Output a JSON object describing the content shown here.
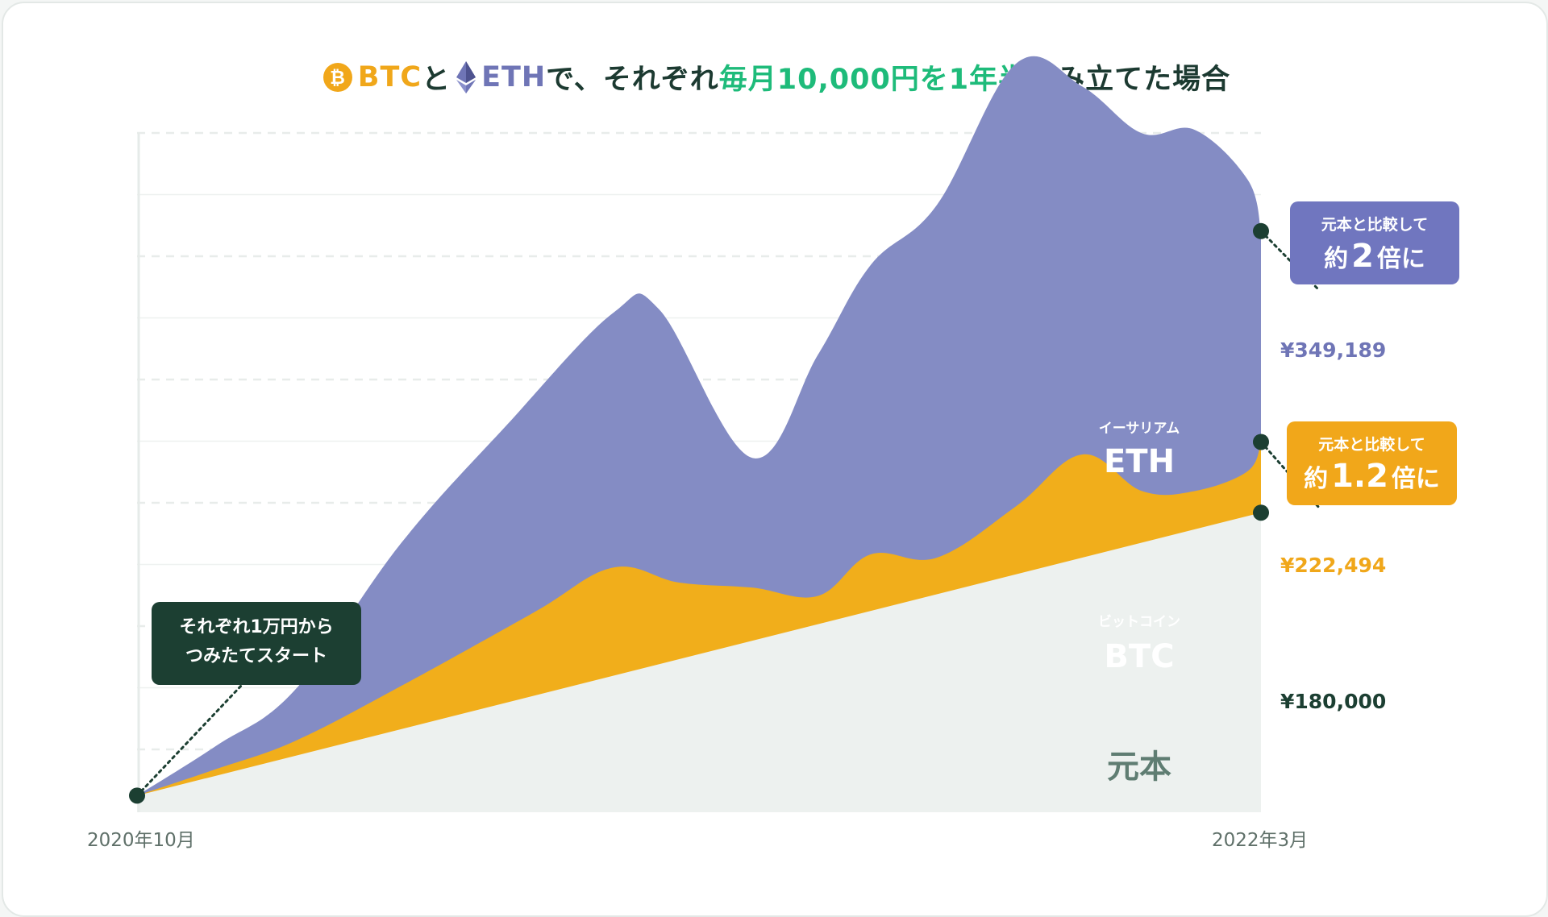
{
  "title": {
    "btc_icon_symbol": "₿",
    "part_btc": "BTC",
    "part_and": "と",
    "part_eth": "ETH",
    "part_de": "で、それぞれ",
    "part_highlight": "毎月10,000円を1年半",
    "part_end": "積み立てた場合"
  },
  "colors": {
    "btc": "#f1ae1b",
    "eth": "#848cc4",
    "principal": "#edf1ef",
    "highlight": "#1ebb7a",
    "dark": "#1c3f32"
  },
  "callouts": {
    "eth": {
      "line1": "元本と比較して",
      "prefix": "約",
      "number": "2",
      "suffix": "倍に"
    },
    "btc": {
      "line1": "元本と比較して",
      "prefix": "約",
      "number": "1.2",
      "suffix": "倍に"
    },
    "start": {
      "line1": "それぞれ1万円から",
      "line2": "つみたてスタート"
    }
  },
  "chart_data": {
    "type": "area",
    "title": "BTCとETHで、それぞれ毎月10,000円を1年半積み立てた場合",
    "x_start_label": "2020年10月",
    "x_end_label": "2022年3月",
    "ylim": [
      0,
      400000
    ],
    "x_domain": [
      0,
      17
    ],
    "series": [
      {
        "name": "元本",
        "key": "principal",
        "points": [
          [
            0,
            10000
          ],
          [
            17,
            180000
          ]
        ],
        "final_label": "¥180,000"
      },
      {
        "name": "BTC",
        "key": "btc",
        "kana": "ビットコイン",
        "points": [
          [
            0,
            10000
          ],
          [
            1.2,
            26000
          ],
          [
            2.4,
            43000
          ],
          [
            4,
            76000
          ],
          [
            6,
            120000
          ],
          [
            7.2,
            147000
          ],
          [
            8.2,
            138000
          ],
          [
            9.3,
            135000
          ],
          [
            10.3,
            130000
          ],
          [
            11.1,
            155000
          ],
          [
            12.1,
            153000
          ],
          [
            13.3,
            184000
          ],
          [
            14.3,
            215000
          ],
          [
            15.2,
            193000
          ],
          [
            16,
            193000
          ],
          [
            16.8,
            205000
          ],
          [
            17,
            222494
          ]
        ],
        "final_label": "¥222,494"
      },
      {
        "name": "ETH",
        "key": "eth",
        "kana": "イーサリアム",
        "points": [
          [
            0,
            10000
          ],
          [
            1.2,
            40000
          ],
          [
            2.4,
            74000
          ],
          [
            4,
            162000
          ],
          [
            5.6,
            233000
          ],
          [
            7.2,
            300000
          ],
          [
            7.9,
            302000
          ],
          [
            9.3,
            213000
          ],
          [
            10.3,
            275000
          ],
          [
            11.1,
            329000
          ],
          [
            12.1,
            365000
          ],
          [
            13.3,
            450000
          ],
          [
            14.3,
            436000
          ],
          [
            15.2,
            408000
          ],
          [
            16,
            410000
          ],
          [
            16.8,
            380000
          ],
          [
            17,
            349189
          ]
        ],
        "final_label": "¥349,189"
      }
    ],
    "area_labels": {
      "eth_kana": "イーサリアム",
      "eth": "ETH",
      "btc_kana": "ビットコイン",
      "btc": "BTC",
      "principal": "元本"
    },
    "grid": true
  }
}
